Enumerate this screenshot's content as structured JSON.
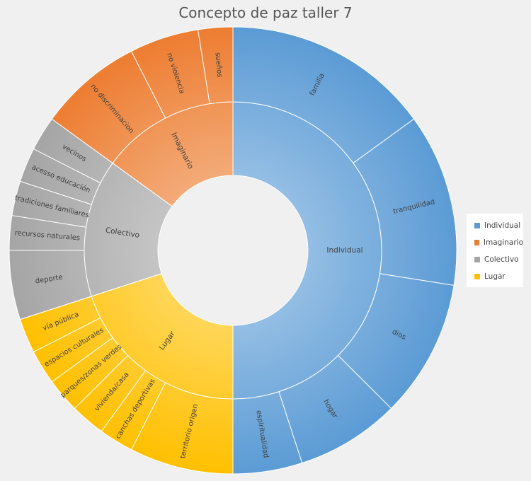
{
  "chart_data": {
    "type": "sunburst",
    "title": "Concepto de paz taller 7",
    "series": [
      {
        "name": "Individual",
        "color": "#5b9bd5",
        "children": [
          {
            "label": "familia",
            "value": 6
          },
          {
            "label": "tranquilidad",
            "value": 5
          },
          {
            "label": "dios",
            "value": 4
          },
          {
            "label": "hogar",
            "value": 3
          },
          {
            "label": "espiritualidad",
            "value": 2
          }
        ]
      },
      {
        "name": "Lugar",
        "color": "#ffc000",
        "children": [
          {
            "label": "territorio origen",
            "value": 3
          },
          {
            "label": "canchas deportivas",
            "value": 1
          },
          {
            "label": "vivienda/casa",
            "value": 1
          },
          {
            "label": "parques/zonas verdes",
            "value": 1
          },
          {
            "label": "espacios culturales",
            "value": 1
          },
          {
            "label": "vía pública",
            "value": 1
          }
        ]
      },
      {
        "name": "Colectivo",
        "color": "#a5a5a5",
        "children": [
          {
            "label": "deporte",
            "value": 2
          },
          {
            "label": "recursos naturales",
            "value": 1
          },
          {
            "label": "tradiciones familiares",
            "value": 1
          },
          {
            "label": "acesso educación",
            "value": 1
          },
          {
            "label": "vecinos",
            "value": 1
          }
        ]
      },
      {
        "name": "Imaginario",
        "color": "#ed7d31",
        "children": [
          {
            "label": "no discriminacion",
            "value": 3
          },
          {
            "label": "no violencia",
            "value": 2
          },
          {
            "label": "sueños",
            "value": 1
          }
        ]
      }
    ],
    "legend": {
      "position": "right",
      "items": [
        {
          "label": "Individual",
          "color": "#5b9bd5"
        },
        {
          "label": "Imaginario",
          "color": "#ed7d31"
        },
        {
          "label": "Colectivo",
          "color": "#a5a5a5"
        },
        {
          "label": "Lugar",
          "color": "#ffc000"
        }
      ]
    }
  }
}
